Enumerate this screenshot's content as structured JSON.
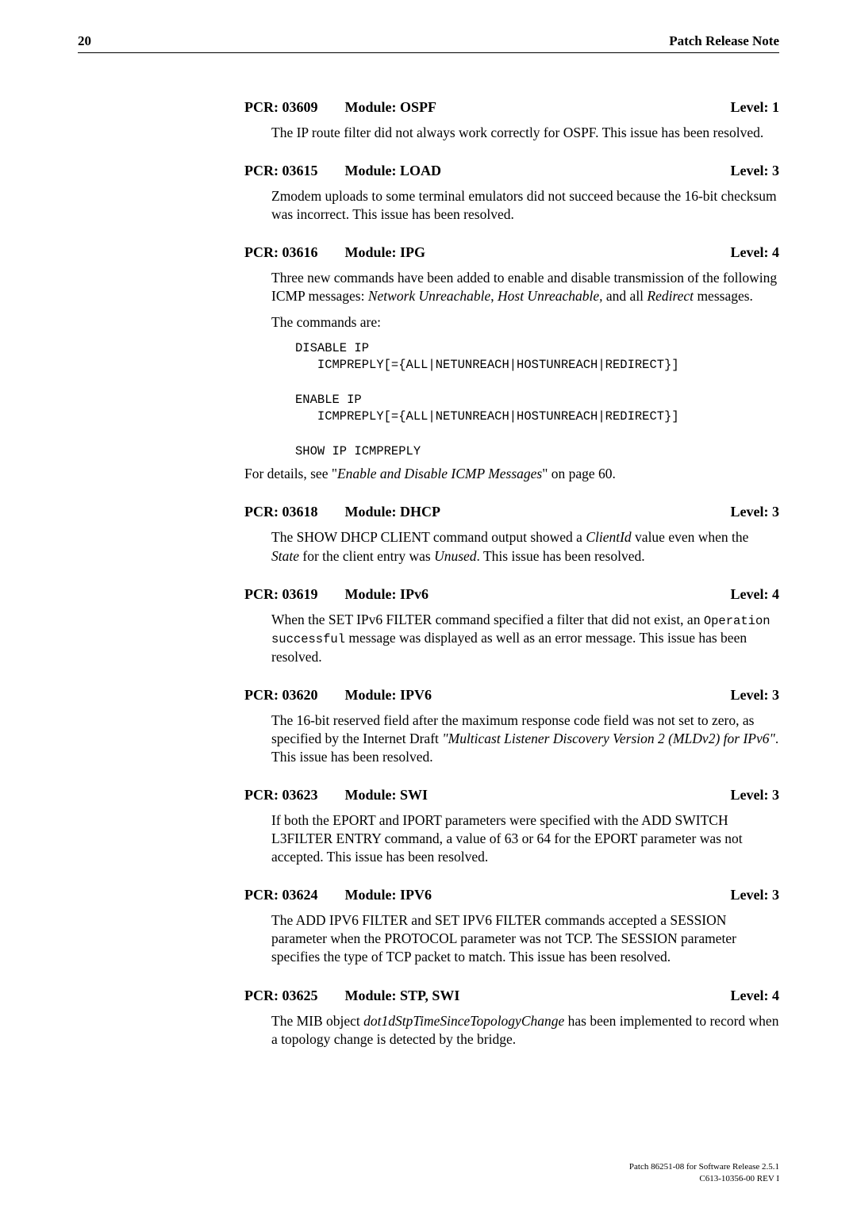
{
  "header": {
    "page_number": "20",
    "doc_title": "Patch Release Note"
  },
  "entries": [
    {
      "id": "PCR: 03609",
      "module": "Module: OSPF",
      "level": "Level: 1",
      "paras": [
        "The IP route filter did not always work correctly for OSPF. This issue has been resolved."
      ]
    },
    {
      "id": "PCR: 03615",
      "module": "Module: LOAD",
      "level": "Level: 3",
      "paras": [
        "Zmodem uploads to some terminal emulators did not succeed because the 16-bit checksum was incorrect. This issue has been resolved."
      ]
    },
    {
      "id": "PCR: 03616",
      "module": "Module: IPG",
      "level": "Level: 4",
      "paras_html": [
        "Three new commands have been added to enable and disable transmission of the following ICMP messages: <span class=\"italic\">Network Unreachable</span>, <span class=\"italic\">Host Unreachable,</span> and all <span class=\"italic\">Redirect</span> messages.",
        "The commands are:"
      ],
      "code": "DISABLE IP\n   ICMPREPLY[={ALL|NETUNREACH|HOSTUNREACH|REDIRECT}]\n\nENABLE IP\n   ICMPREPLY[={ALL|NETUNREACH|HOSTUNREACH|REDIRECT}]\n\nSHOW IP ICMPREPLY",
      "after_html": "For details, see \"<span class=\"italic\">Enable and Disable ICMP Messages</span>\" on page 60."
    },
    {
      "id": "PCR: 03618",
      "module": "Module: DHCP",
      "level": "Level: 3",
      "paras_html": [
        "The SHOW DHCP CLIENT command output showed a <span class=\"italic\">ClientId</span> value even when the <span class=\"italic\">State</span> for the client entry was <span class=\"italic\">Unused</span>. This issue has been resolved."
      ]
    },
    {
      "id": "PCR: 03619",
      "module": "Module: IPv6",
      "level": "Level: 4",
      "paras_html": [
        "When the SET IPv6 FILTER command specified a filter that did not exist, an <span style=\"font-family:Courier New,monospace;font-size:15.5px\">Operation successful</span> message was displayed as well as an error message. This issue has been resolved."
      ]
    },
    {
      "id": "PCR: 03620",
      "module": "Module: IPV6",
      "level": "Level: 3",
      "paras_html": [
        "The 16-bit reserved field after the maximum response code field was not set to zero, as specified by the Internet Draft <span class=\"italic\">\"Multicast Listener Discovery Version 2 (MLDv2) for IPv6\"</span>. This issue has been resolved."
      ]
    },
    {
      "id": "PCR: 03623",
      "module": "Module: SWI",
      "level": "Level: 3",
      "paras": [
        "If both the EPORT and IPORT parameters were specified with the ADD SWITCH L3FILTER ENTRY command, a value of 63 or 64 for the EPORT parameter was not accepted. This issue has been resolved."
      ]
    },
    {
      "id": "PCR: 03624",
      "module": "Module: IPV6",
      "level": "Level: 3",
      "paras": [
        "The ADD IPV6 FILTER and SET IPV6 FILTER commands accepted a SESSION parameter when the PROTOCOL parameter was not TCP. The SESSION parameter specifies the type of TCP packet to match. This issue has been resolved."
      ]
    },
    {
      "id": "PCR: 03625",
      "module": "Module: STP, SWI",
      "level": "Level: 4",
      "paras_html": [
        "The MIB object <span class=\"italic\">dot1dStpTimeSinceTopologyChange</span> has been implemented to record when a topology change is detected by the bridge."
      ]
    }
  ],
  "footer": {
    "line1": "Patch 86251-08 for Software Release 2.5.1",
    "line2": "C613-10356-00 REV I"
  }
}
